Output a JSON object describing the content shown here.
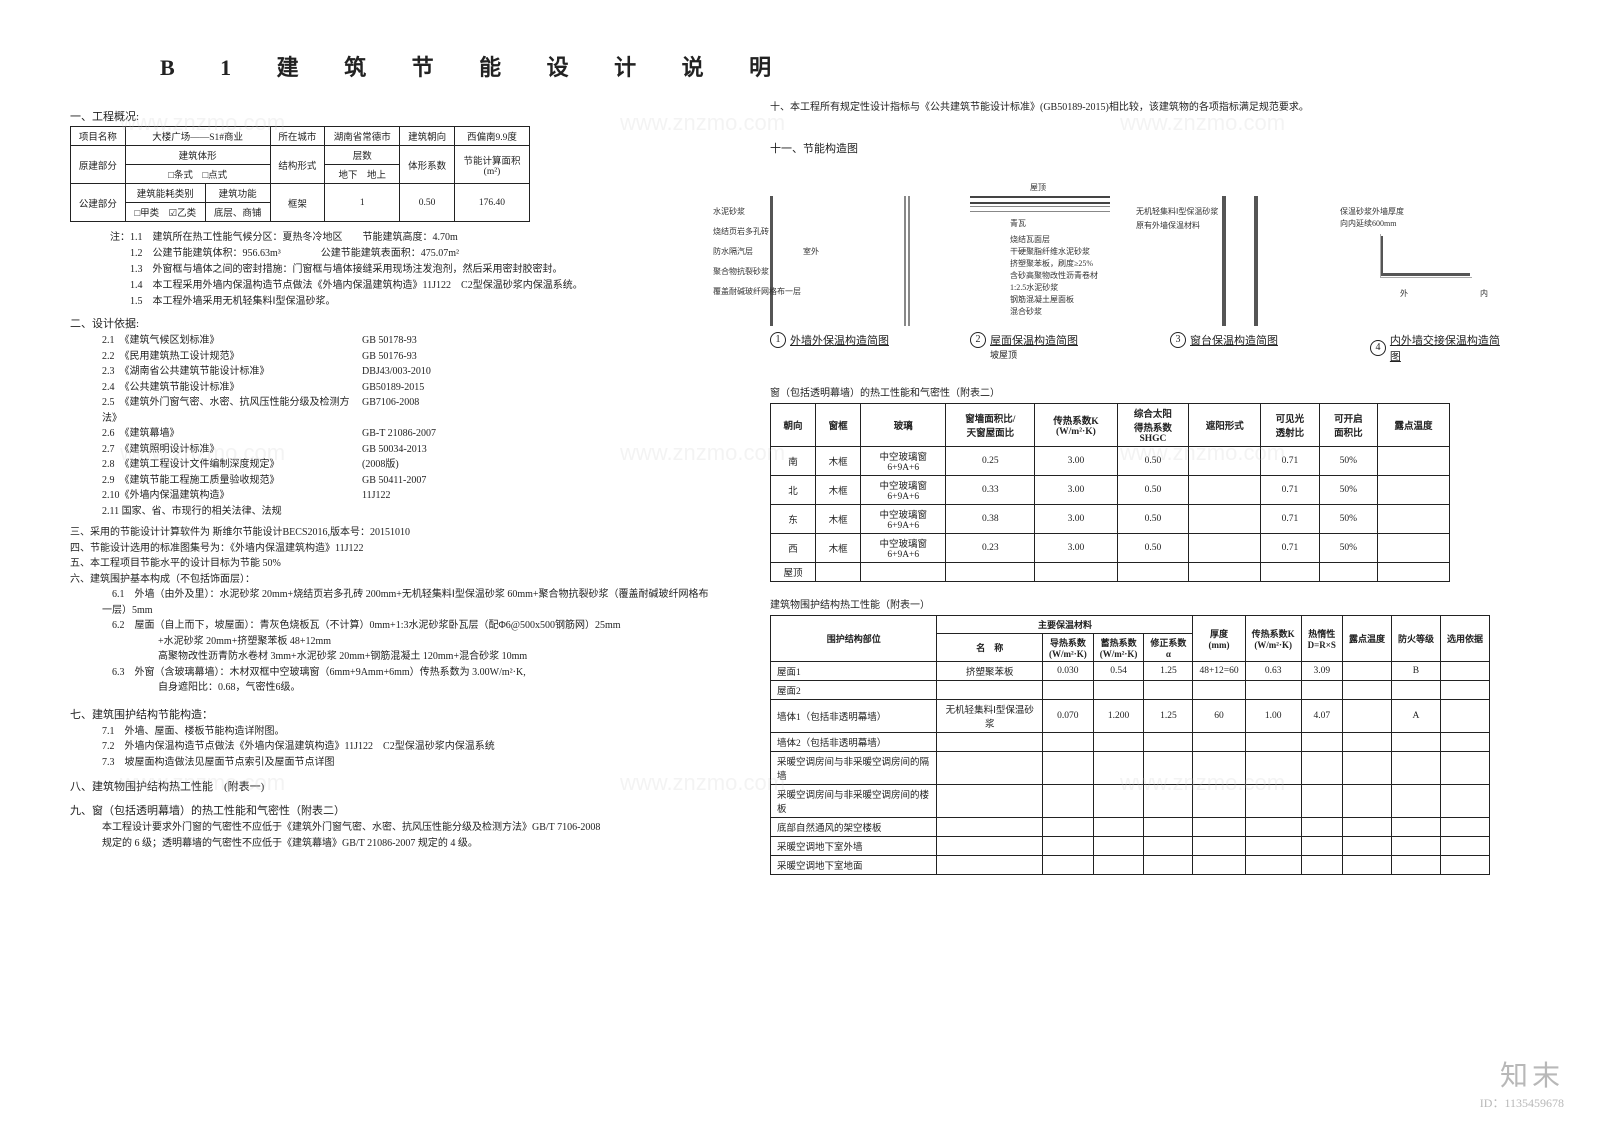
{
  "title": "B 1 建 筑 节 能 设 计 说 明",
  "sect1": "一、工程概况:",
  "t1": {
    "r": [
      [
        "项目名称",
        "大楼广场——S1#商业",
        "所在城市",
        "湖南省常德市",
        "建筑朝向",
        "西偏南9.9度"
      ],
      [
        "原建部分",
        "建筑体形",
        "结构形式",
        "层数",
        "体形系数",
        "节能计算面积\n(m²)"
      ],
      [
        "",
        "□条式　□点式",
        "",
        "地下",
        "地上",
        "",
        ""
      ],
      [
        "公建部分",
        "建筑能耗类别",
        "建筑功能",
        "框架",
        "",
        "1",
        "0.50",
        "176.40"
      ],
      [
        "",
        "□甲类　☑乙类",
        "底层、商铺",
        "",
        "",
        "",
        "",
        ""
      ]
    ]
  },
  "notes1": [
    "注：1.1　建筑所在热工性能气候分区：夏热冬冷地区　　节能建筑高度：4.70m",
    "　　1.2　公建节能建筑体积：956.63m³　　　　公建节能建筑表面积：475.07m²",
    "　　1.3　外窗框与墙体之间的密封措施：门窗框与墙体接缝采用现场注发泡剂，然后采用密封胶密封。",
    "　　1.4　本工程采用外墙内保温构造节点做法《外墙内保温建筑构造》11J122　C2型保温砂浆内保温系统。",
    "　　1.5　本工程外墙采用无机轻集料Ⅰ型保温砂浆。"
  ],
  "sect2": "二、设计依据:",
  "stds": [
    [
      "2.1　《建筑气候区划标准》",
      "GB 50178-93"
    ],
    [
      "2.2　《民用建筑热工设计规范》",
      "GB 50176-93"
    ],
    [
      "2.3　《湖南省公共建筑节能设计标准》",
      "DBJ43/003-2010"
    ],
    [
      "2.4　《公共建筑节能设计标准》",
      "GB50189-2015"
    ],
    [
      "2.5　《建筑外门窗气密、水密、抗风压性能分级及检测方法》",
      "GB7106-2008"
    ],
    [
      "2.6　《建筑幕墙》",
      "GB-T 21086-2007"
    ],
    [
      "2.7　《建筑照明设计标准》",
      "GB 50034-2013"
    ],
    [
      "2.8　《建筑工程设计文件编制深度规定》",
      "(2008版)"
    ],
    [
      "2.9　《建筑节能工程施工质量验收规范》",
      "GB 50411-2007"
    ],
    [
      "2.10《外墙内保温建筑构造》",
      "11J122"
    ],
    [
      "2.11 国家、省、市现行的相关法律、法规",
      ""
    ]
  ],
  "sects_rest": [
    [
      "三、采用的节能设计计算软件为 斯维尔节能设计BECS2016,版本号：20151010"
    ],
    [
      "四、节能设计选用的标准图集号为：《外墙内保温建筑构造》11J122"
    ],
    [
      "五、本工程项目节能水平的设计目标为节能 50%"
    ],
    [
      "六、建筑围护基本构成（不包括饰面层）："
    ],
    [
      "　6.1　外墙（由外及里）：水泥砂浆 20mm+烧结页岩多孔砖 200mm+无机轻集料Ⅰ型保温砂浆 60mm+聚合物抗裂砂浆（覆盖耐碱玻纤网格布一层）5mm"
    ],
    [
      "　6.2　屋面（自上而下，坡屋面）：青灰色烧板瓦（不计算）0mm+1:3水泥砂浆卧瓦层（配Φ6@500x500钢筋网）25mm"
    ],
    [
      "　　　　+水泥砂浆 20mm+挤塑聚苯板 48+12mm"
    ],
    [
      "　　　　高聚物改性沥青防水卷材 3mm+水泥砂浆 20mm+钢筋混凝土 120mm+混合砂浆 10mm"
    ],
    [
      "　6.3　外窗（含玻璃幕墙）：木材双框中空玻璃窗（6mm+9Amm+6mm）传热系数为 3.00W/m²·K,"
    ],
    [
      "　　　　自身遮阳比：0.68，气密性6级。"
    ]
  ],
  "sect7": "七、建筑围护结构节能构造：",
  "s7": [
    "7.1　外墙、屋面、楼板节能构造详附图。",
    "7.2　外墙内保温构造节点做法《外墙内保温建筑构造》11J122　C2型保温砂浆内保温系统",
    "7.3　坡屋面构造做法见屋面节点索引及屋面节点详图"
  ],
  "sect8": "八、建筑物围护结构热工性能　(附表一)",
  "sect9": "九、窗（包括透明幕墙）的热工性能和气密性（附表二）",
  "s9": [
    "本工程设计要求外门窗的气密性不应低于《建筑外门窗气密、水密、抗风压性能分级及检测方法》GB/T 7106-2008",
    "规定的 6 级；透明幕墙的气密性不应低于《建筑幕墙》GB/T 21086-2007 规定的 4 级。"
  ],
  "right_top": "十、本工程所有规定性设计指标与《公共建筑节能设计标准》(GB50189-2015)相比较，该建筑物的各项指标满足规范要求。",
  "sect11": "十一、节能构造图",
  "diags": [
    {
      "n": "1",
      "t": "外墙外保温构造简图"
    },
    {
      "n": "2",
      "t": "屋面保温构造简图",
      "sub": "坡屋顶"
    },
    {
      "n": "3",
      "t": "窗台保温构造简图"
    },
    {
      "n": "4",
      "t": "内外墙交接保温构造简图"
    }
  ],
  "dlabels1": [
    "水泥砂浆",
    "烧结页岩多孔砖",
    "防水隔汽层",
    "聚合物抗裂砂浆",
    "覆盖耐碱玻纤网格布一层"
  ],
  "dlabels2": [
    "屋顶",
    "青瓦",
    "烧结瓦面层",
    "干硬聚脂纤维水泥砂浆",
    "挤塑聚苯板，刷度≥25%",
    "含砂高聚物改性沥青卷材",
    "1:2.5水泥砂浆",
    "钢筋混凝土屋面板",
    "混合砂浆"
  ],
  "dlabels3": [
    "无机轻集料Ⅰ型保温砂浆",
    "原有外墙保温材料"
  ],
  "dlabels4": [
    "保温砂浆外墙厚度",
    "向内延续600mm",
    "外",
    "内"
  ],
  "t2_cap": "窗（包括透明幕墙）的热工性能和气密性（附表二）",
  "t2_head": [
    "朝向",
    "窗框",
    "玻璃",
    "窗墙面积比/\n天窗屋面比",
    "传热系数K\n(W/m²·K)",
    "综合太阳\n得热系数\nSHGC",
    "遮阳形式",
    "可见光\n透射比",
    "可开启\n面积比",
    "露点温度"
  ],
  "t2_rows": [
    [
      "南",
      "木框",
      "中空玻璃窗\n6+9A+6",
      "0.25",
      "3.00",
      "0.50",
      "",
      "0.71",
      "50%",
      ""
    ],
    [
      "北",
      "木框",
      "中空玻璃窗\n6+9A+6",
      "0.33",
      "3.00",
      "0.50",
      "",
      "0.71",
      "50%",
      ""
    ],
    [
      "东",
      "木框",
      "中空玻璃窗\n6+9A+6",
      "0.38",
      "3.00",
      "0.50",
      "",
      "0.71",
      "50%",
      ""
    ],
    [
      "西",
      "木框",
      "中空玻璃窗\n6+9A+6",
      "0.23",
      "3.00",
      "0.50",
      "",
      "0.71",
      "50%",
      ""
    ],
    [
      "屋顶",
      "",
      "",
      "",
      "",
      "",
      "",
      "",
      "",
      ""
    ]
  ],
  "t3_cap": "建筑物围护结构热工性能（附表一）",
  "t3_head1": [
    "围护结构部位",
    "主要保温材料",
    "",
    "",
    "",
    "厚度\n(mm)",
    "传热系数K\n(W/m²·K)",
    "热惰性\nD=R×S",
    "露点温度",
    "防火等级",
    "选用依据"
  ],
  "t3_head2": [
    "",
    "名　称",
    "导热系数\n(W/m²·K)",
    "蓄热系数\n(W/m²·K)",
    "修正系数\nα",
    "",
    "",
    "",
    "",
    "",
    ""
  ],
  "t3_rows": [
    [
      "屋面1",
      "挤塑聚苯板",
      "0.030",
      "0.54",
      "1.25",
      "48+12=60",
      "0.63",
      "3.09",
      "",
      "B",
      ""
    ],
    [
      "屋面2",
      "",
      "",
      "",
      "",
      "",
      "",
      "",
      "",
      "",
      ""
    ],
    [
      "墙体1（包括非透明幕墙）",
      "无机轻集料Ⅰ型保温砂浆",
      "0.070",
      "1.200",
      "1.25",
      "60",
      "1.00",
      "4.07",
      "",
      "A",
      ""
    ],
    [
      "墙体2（包括非透明幕墙）",
      "",
      "",
      "",
      "",
      "",
      "",
      "",
      "",
      "",
      ""
    ],
    [
      "采暖空调房间与非采暖空调房间的隔墙",
      "",
      "",
      "",
      "",
      "",
      "",
      "",
      "",
      "",
      ""
    ],
    [
      "采暖空调房间与非采暖空调房间的楼板",
      "",
      "",
      "",
      "",
      "",
      "",
      "",
      "",
      "",
      ""
    ],
    [
      "底部自然通风的架空楼板",
      "",
      "",
      "",
      "",
      "",
      "",
      "",
      "",
      "",
      ""
    ],
    [
      "采暖空调地下室外墙",
      "",
      "",
      "",
      "",
      "",
      "",
      "",
      "",
      "",
      ""
    ],
    [
      "采暖空调地下室地面",
      "",
      "",
      "",
      "",
      "",
      "",
      "",
      "",
      "",
      ""
    ]
  ],
  "brand": {
    "logo": "知末",
    "id": "ID：1135459678"
  },
  "wm": "www.znzmo.com"
}
